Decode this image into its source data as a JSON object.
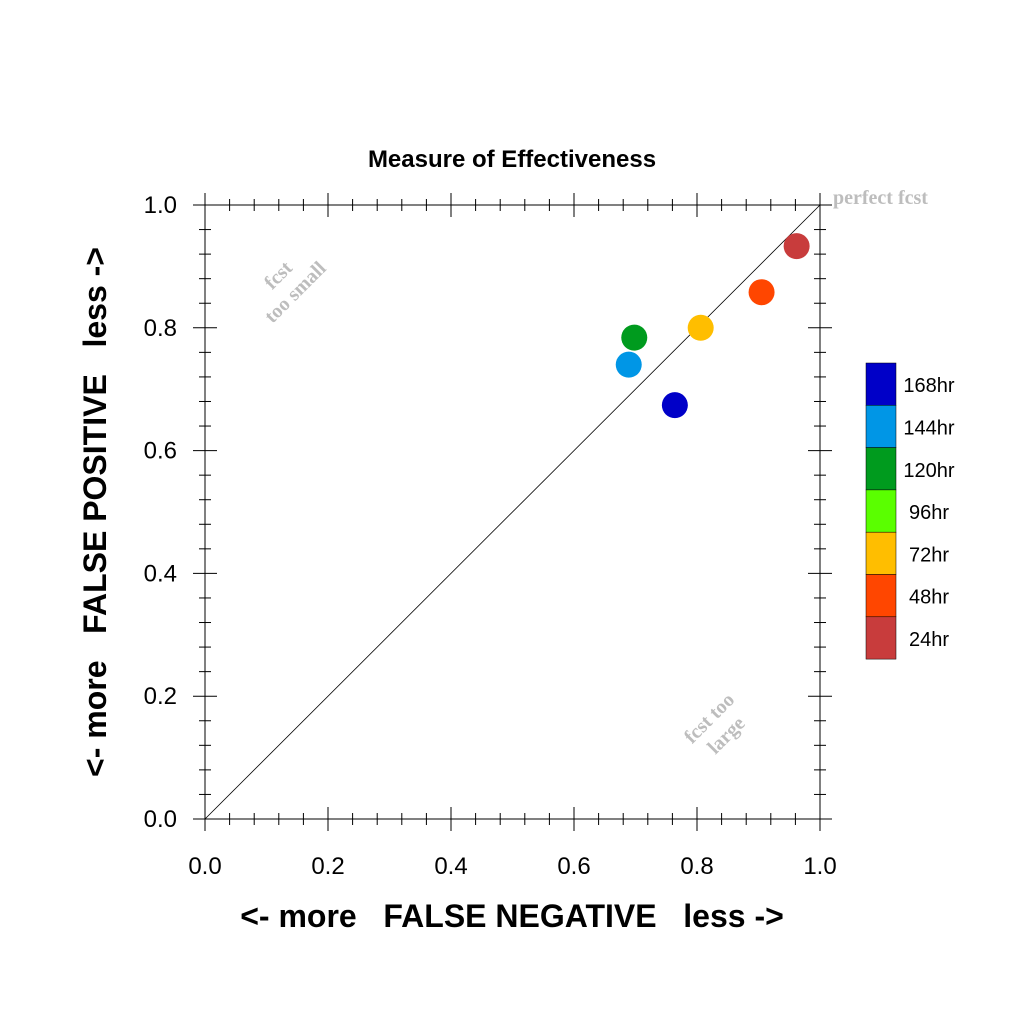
{
  "chart_data": {
    "type": "scatter",
    "title": "Measure of Effectiveness",
    "xlabel": "<- more   FALSE NEGATIVE   less ->",
    "ylabel": "<- more   FALSE POSITIVE   less ->",
    "xlim": [
      0.0,
      1.0
    ],
    "ylim": [
      0.0,
      1.0
    ],
    "x_ticks": [
      "0.0",
      "0.2",
      "0.4",
      "0.6",
      "0.8",
      "1.0"
    ],
    "y_ticks": [
      "0.0",
      "0.2",
      "0.4",
      "0.6",
      "0.8",
      "1.0"
    ],
    "grid": false,
    "legend_position": "right",
    "diagonal_line": true,
    "annotations": {
      "perfect": "perfect fcst",
      "too_small_line1": "fcst",
      "too_small_line2": "too small",
      "too_large_line1": "fcst too",
      "too_large_line2": "large"
    },
    "legend": [
      {
        "label": "168hr",
        "color": "#0000C8"
      },
      {
        "label": "144hr",
        "color": "#0096E6"
      },
      {
        "label": "120hr",
        "color": "#009B1E"
      },
      {
        "label": "96hr",
        "color": "#5AFF00"
      },
      {
        "label": "72hr",
        "color": "#FFBE00"
      },
      {
        "label": "48hr",
        "color": "#FF4600"
      },
      {
        "label": "24hr",
        "color": "#C83C3C"
      }
    ],
    "points": [
      {
        "series": "168hr",
        "x": 0.764,
        "y": 0.674
      },
      {
        "series": "144hr",
        "x": 0.689,
        "y": 0.74
      },
      {
        "series": "120hr",
        "x": 0.698,
        "y": 0.784
      },
      {
        "series": "72hr",
        "x": 0.806,
        "y": 0.8
      },
      {
        "series": "48hr",
        "x": 0.905,
        "y": 0.858
      },
      {
        "series": "24hr",
        "x": 0.962,
        "y": 0.933
      }
    ]
  }
}
